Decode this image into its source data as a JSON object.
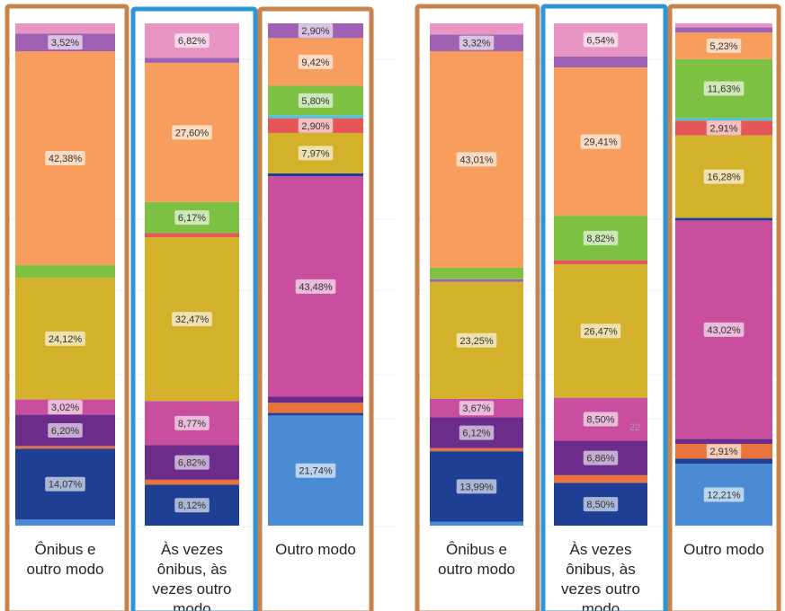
{
  "chart_data": [
    {
      "type": "bar",
      "stacked": true,
      "categories": [
        "Ônibus e outro modo",
        "Às vezes ônibus, às vezes outro modo",
        "Outro modo"
      ],
      "category_lines": [
        [
          "Ônibus e",
          "outro modo"
        ],
        [
          "Às vezes",
          "ônibus, às",
          "vezes outro",
          "modo"
        ],
        [
          "Outro modo"
        ]
      ],
      "unit": "%",
      "ylim": [
        0,
        100
      ],
      "grid": true,
      "stacks": [
        [
          {
            "value": 1.2,
            "color": "#4A8BD4",
            "label": ""
          },
          {
            "value": 14.07,
            "color": "#1F3F94",
            "label": "14,07%"
          },
          {
            "value": 0.5,
            "color": "#E8743B",
            "label": ""
          },
          {
            "value": 6.2,
            "color": "#6B2C8C",
            "label": "6,20%"
          },
          {
            "value": 3.02,
            "color": "#C94E9E",
            "label": "3,02%"
          },
          {
            "value": 24.12,
            "color": "#D4B12A",
            "label": "24,12%"
          },
          {
            "value": 2.5,
            "color": "#7DC142",
            "label": ""
          },
          {
            "value": 42.38,
            "color": "#F79E5F",
            "label": "42,38%"
          },
          {
            "value": 3.52,
            "color": "#9E61B3",
            "label": "3,52%"
          },
          {
            "value": 2.0,
            "color": "#E895C4",
            "label": ""
          }
        ],
        [
          {
            "value": 8.12,
            "color": "#1F3F94",
            "label": "8,12%"
          },
          {
            "value": 1.0,
            "color": "#E8743B",
            "label": ""
          },
          {
            "value": 6.82,
            "color": "#6B2C8C",
            "label": "6,82%"
          },
          {
            "value": 8.77,
            "color": "#C94E9E",
            "label": "8,77%"
          },
          {
            "value": 32.47,
            "color": "#D4B12A",
            "label": "32,47%"
          },
          {
            "value": 0.8,
            "color": "#E55757",
            "label": ""
          },
          {
            "value": 6.17,
            "color": "#7DC142",
            "label": "6,17%"
          },
          {
            "value": 27.6,
            "color": "#F79E5F",
            "label": "27,60%"
          },
          {
            "value": 1.0,
            "color": "#9E61B3",
            "label": ""
          },
          {
            "value": 6.82,
            "color": "#E895C4",
            "label": "6,82%"
          }
        ],
        [
          {
            "value": 21.74,
            "color": "#4A8BD4",
            "label": "21,74%"
          },
          {
            "value": 0.5,
            "color": "#1F3F94",
            "label": ""
          },
          {
            "value": 2.0,
            "color": "#E8743B",
            "label": ""
          },
          {
            "value": 1.2,
            "color": "#6B2C8C",
            "label": ""
          },
          {
            "value": 43.48,
            "color": "#C94E9E",
            "label": "43,48%"
          },
          {
            "value": 0.6,
            "color": "#1F3F94",
            "label": ""
          },
          {
            "value": 7.97,
            "color": "#D4B12A",
            "label": "7,97%"
          },
          {
            "value": 2.9,
            "color": "#E55757",
            "label": "2,90%"
          },
          {
            "value": 0.6,
            "color": "#4DC3E0",
            "label": ""
          },
          {
            "value": 5.8,
            "color": "#7DC142",
            "label": "5,80%"
          },
          {
            "value": 9.42,
            "color": "#F79E5F",
            "label": "9,42%"
          },
          {
            "value": 2.9,
            "color": "#9E61B3",
            "label": "2,90%"
          }
        ]
      ]
    },
    {
      "type": "bar",
      "stacked": true,
      "categories": [
        "Ônibus e outro modo",
        "Às vezes ônibus, às vezes outro modo",
        "Outro modo"
      ],
      "category_lines": [
        [
          "Ônibus e",
          "outro modo"
        ],
        [
          "Às vezes",
          "ônibus, às",
          "vezes outro",
          "modo"
        ],
        [
          "Outro modo"
        ]
      ],
      "unit": "%",
      "ylim": [
        0,
        100
      ],
      "grid": true,
      "stacks": [
        [
          {
            "value": 0.8,
            "color": "#4A8BD4",
            "label": ""
          },
          {
            "value": 13.99,
            "color": "#1F3F94",
            "label": "13,99%"
          },
          {
            "value": 0.6,
            "color": "#E8743B",
            "label": ""
          },
          {
            "value": 6.12,
            "color": "#6B2C8C",
            "label": "6,12%"
          },
          {
            "value": 3.67,
            "color": "#C94E9E",
            "label": "3,67%"
          },
          {
            "value": 23.25,
            "color": "#D4B12A",
            "label": "23,25%"
          },
          {
            "value": 0.5,
            "color": "#9E61B3",
            "label": ""
          },
          {
            "value": 2.3,
            "color": "#7DC142",
            "label": ""
          },
          {
            "value": 43.01,
            "color": "#F79E5F",
            "label": "43,01%"
          },
          {
            "value": 3.32,
            "color": "#9E61B3",
            "label": "3,32%"
          },
          {
            "value": 2.2,
            "color": "#E895C4",
            "label": ""
          }
        ],
        [
          {
            "value": 8.5,
            "color": "#1F3F94",
            "label": "8,50%"
          },
          {
            "value": 1.5,
            "color": "#E8743B",
            "label": ""
          },
          {
            "value": 6.86,
            "color": "#6B2C8C",
            "label": "6,86%"
          },
          {
            "value": 8.5,
            "color": "#C94E9E",
            "label": "8,50%"
          },
          {
            "value": 26.47,
            "color": "#D4B12A",
            "label": "26,47%"
          },
          {
            "value": 0.8,
            "color": "#E55757",
            "label": ""
          },
          {
            "value": 8.82,
            "color": "#7DC142",
            "label": "8,82%"
          },
          {
            "value": 29.41,
            "color": "#F79E5F",
            "label": "29,41%"
          },
          {
            "value": 2.2,
            "color": "#9E61B3",
            "label": ""
          },
          {
            "value": 6.54,
            "color": "#E895C4",
            "label": "6,54%"
          }
        ],
        [
          {
            "value": 12.21,
            "color": "#4A8BD4",
            "label": "12,21%"
          },
          {
            "value": 1.0,
            "color": "#1F3F94",
            "label": ""
          },
          {
            "value": 2.91,
            "color": "#E8743B",
            "label": "2,91%"
          },
          {
            "value": 1.0,
            "color": "#6B2C8C",
            "label": ""
          },
          {
            "value": 43.02,
            "color": "#C94E9E",
            "label": "43,02%"
          },
          {
            "value": 0.5,
            "color": "#1F3F94",
            "label": ""
          },
          {
            "value": 16.28,
            "color": "#D4B12A",
            "label": "16,28%"
          },
          {
            "value": 2.91,
            "color": "#E55757",
            "label": "2,91%"
          },
          {
            "value": 0.5,
            "color": "#4DC3E0",
            "label": ""
          },
          {
            "value": 11.63,
            "color": "#7DC142",
            "label": "11,63%"
          },
          {
            "value": 5.23,
            "color": "#F79E5F",
            "label": "5,23%"
          },
          {
            "value": 1.0,
            "color": "#9E61B3",
            "label": ""
          },
          {
            "value": 0.8,
            "color": "#E895C4",
            "label": ""
          }
        ]
      ]
    }
  ],
  "highlight_colors": {
    "outro_modo_box": "#C8834A",
    "as_vezes_box": "#2E95D8"
  },
  "stray_text": "22"
}
